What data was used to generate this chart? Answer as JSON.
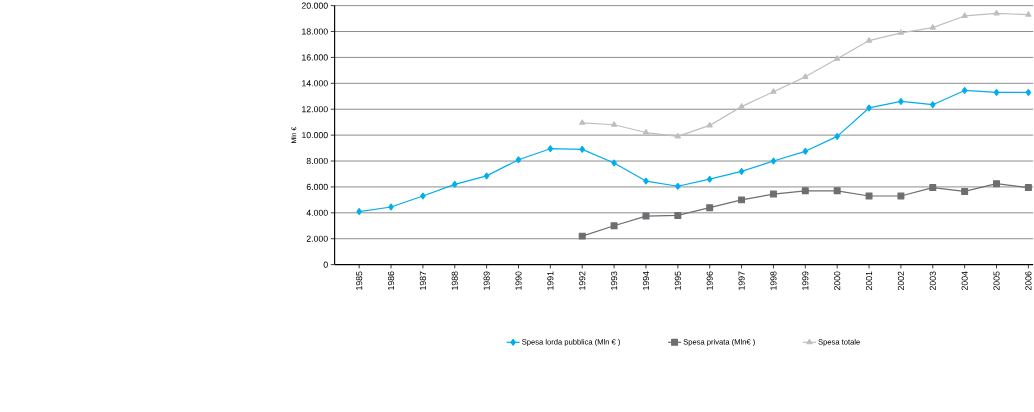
{
  "chart_data": {
    "type": "line",
    "ylabel": "Mln €",
    "categories": [
      "1985",
      "1986",
      "1987",
      "1988",
      "1989",
      "1990",
      "1991",
      "1992",
      "1993",
      "1994",
      "1995",
      "1996",
      "1997",
      "1998",
      "1999",
      "2000",
      "2001",
      "2002",
      "2003",
      "2004",
      "2005",
      "2006"
    ],
    "series": [
      {
        "name": "Spesa lorda pubblica (Mln € )",
        "color": "#00aeef",
        "marker": "diamond",
        "values": [
          4100,
          4450,
          5300,
          6200,
          6850,
          8100,
          8950,
          8900,
          7850,
          6450,
          6050,
          6600,
          7200,
          8000,
          8750,
          9900,
          12100,
          12600,
          12350,
          13450,
          13300,
          13300
        ]
      },
      {
        "name": "Spesa privata (Mln€ )",
        "color": "#6d6e71",
        "marker": "square",
        "values": [
          null,
          null,
          null,
          null,
          null,
          null,
          null,
          2200,
          3000,
          3750,
          3800,
          4400,
          5000,
          5450,
          5700,
          5700,
          5300,
          5300,
          5950,
          5650,
          6250,
          5950
        ]
      },
      {
        "name": "Spesa totale",
        "color": "#bcbec0",
        "marker": "triangle",
        "values": [
          null,
          null,
          null,
          null,
          null,
          null,
          null,
          10950,
          10800,
          10200,
          9900,
          10750,
          12200,
          13350,
          14500,
          15900,
          17300,
          17900,
          18300,
          19200,
          19400,
          19300
        ]
      }
    ],
    "ylim": [
      0,
      20000
    ],
    "yticks": [
      0,
      {
        "value": 2000,
        "label": "2.000"
      },
      {
        "value": 4000,
        "label": "4.000"
      },
      {
        "value": 6000,
        "label": "6.000"
      },
      {
        "value": 8000,
        "label": "8.000"
      },
      {
        "value": 10000,
        "label": "10.000"
      },
      {
        "value": 12000,
        "label": "12.000"
      },
      {
        "value": 14000,
        "label": "14.000"
      },
      {
        "value": 16000,
        "label": "16.000"
      },
      {
        "value": 18000,
        "label": "18.000"
      },
      {
        "value": 20000,
        "label": "20.000"
      }
    ],
    "grid": "y",
    "legend": "bottom",
    "line_style": "solid"
  }
}
